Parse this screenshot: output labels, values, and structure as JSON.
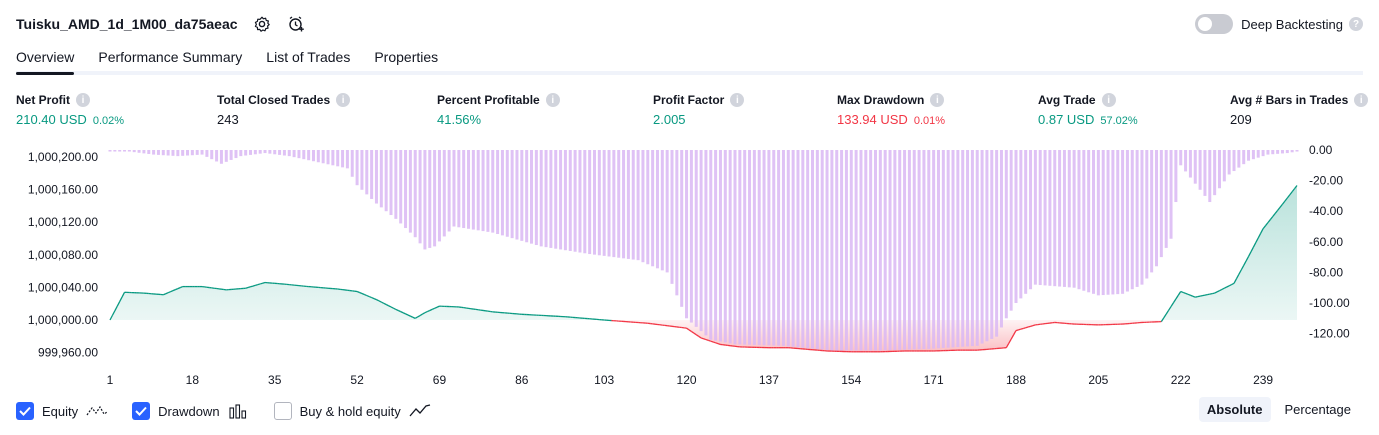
{
  "header": {
    "strategy_name": "Tuisku_AMD_1d_1M00_da75aeac",
    "deep_backtesting_label": "Deep Backtesting"
  },
  "tabs": [
    {
      "label": "Overview",
      "active": true
    },
    {
      "label": "Performance Summary",
      "active": false
    },
    {
      "label": "List of Trades",
      "active": false
    },
    {
      "label": "Properties",
      "active": false
    }
  ],
  "metrics": {
    "net_profit": {
      "label": "Net Profit",
      "value": "210.40 USD",
      "pct": "0.02%"
    },
    "total_closed_trades": {
      "label": "Total Closed Trades",
      "value": "243"
    },
    "percent_profitable": {
      "label": "Percent Profitable",
      "value": "41.56%"
    },
    "profit_factor": {
      "label": "Profit Factor",
      "value": "2.005"
    },
    "max_drawdown": {
      "label": "Max Drawdown",
      "value": "133.94 USD",
      "pct": "0.01%"
    },
    "avg_trade": {
      "label": "Avg Trade",
      "value": "0.87 USD",
      "pct": "57.02%"
    },
    "avg_bars": {
      "label": "Avg # Bars in Trades",
      "value": "209"
    }
  },
  "colors": {
    "green": "#089981",
    "red": "#f23645",
    "drawdown_bar": "#d9b7f3",
    "toggle_off": "#c9cbd2",
    "checkbox_on": "#2962ff"
  },
  "chart_data": {
    "type": "area",
    "x_ticks": [
      "1",
      "18",
      "35",
      "52",
      "69",
      "86",
      "103",
      "120",
      "137",
      "154",
      "171",
      "188",
      "205",
      "222",
      "239"
    ],
    "left_ticks": [
      "1,000,200.00",
      "1,000,160.00",
      "1,000,120.00",
      "1,000,080.00",
      "1,000,040.00",
      "1,000,000.00",
      "999,960.00"
    ],
    "right_ticks": [
      "0.00",
      "-20.00",
      "-40.00",
      "-60.00",
      "-80.00",
      "-100.00",
      "-120.00"
    ],
    "ylim_left": [
      999955,
      1000210
    ],
    "ylim_right": [
      -130,
      0
    ],
    "series": [
      {
        "name": "Equity",
        "x": [
          1,
          4,
          8,
          12,
          16,
          20,
          25,
          29,
          33,
          37,
          42,
          48,
          52,
          56,
          60,
          64,
          66,
          69,
          73,
          80,
          86,
          95,
          103,
          112,
          116,
          120,
          123,
          127,
          131,
          137,
          141,
          145,
          149,
          154,
          160,
          165,
          171,
          176,
          180,
          184,
          186,
          188,
          192,
          196,
          200,
          205,
          210,
          214,
          218,
          222,
          225,
          229,
          233,
          236,
          239,
          243,
          246
        ],
        "y": [
          1000000,
          1000034,
          1000033,
          1000031,
          1000041,
          1000041,
          1000037,
          1000039,
          1000046,
          1000044,
          1000041,
          1000038,
          1000035,
          1000025,
          1000013,
          1000002,
          1000009,
          1000017,
          1000016,
          1000010,
          1000007,
          1000004,
          1000000,
          999996,
          999993,
          999990,
          999978,
          999970,
          999967,
          999966,
          999966,
          999964,
          999962,
          999961,
          999961,
          999962,
          999962,
          999963,
          999963,
          999965,
          999966,
          999987,
          999994,
          999997,
          999995,
          999994,
          999995,
          999997,
          999998,
          1000035,
          1000028,
          1000033,
          1000045,
          1000078,
          1000112,
          1000142,
          1000165
        ]
      },
      {
        "name": "Drawdown",
        "x": [
          1,
          5,
          10,
          15,
          20,
          24,
          28,
          33,
          38,
          44,
          50,
          52,
          56,
          60,
          64,
          66,
          68,
          72,
          80,
          90,
          100,
          110,
          116,
          120,
          125,
          130,
          140,
          150,
          160,
          170,
          180,
          184,
          186,
          188,
          192,
          200,
          205,
          210,
          214,
          217,
          220,
          222,
          225,
          228,
          232,
          236,
          240,
          244,
          246
        ],
        "y": [
          -1,
          -1,
          -3,
          -4,
          -3,
          -9,
          -4,
          -2,
          -4,
          -8,
          -12,
          -23,
          -35,
          -45,
          -57,
          -65,
          -63,
          -50,
          -54,
          -63,
          -68,
          -72,
          -80,
          -110,
          -124,
          -127,
          -128,
          -131,
          -131,
          -130,
          -128,
          -122,
          -110,
          -100,
          -88,
          -90,
          -95,
          -94,
          -88,
          -76,
          -58,
          -10,
          -22,
          -34,
          -16,
          -7,
          -3,
          -2,
          -1
        ]
      }
    ],
    "legend_placement": "bottom-left"
  },
  "legend": {
    "equity_label": "Equity",
    "drawdown_label": "Drawdown",
    "buy_hold_label": "Buy & hold equity"
  },
  "scale": {
    "absolute_label": "Absolute",
    "percentage_label": "Percentage"
  }
}
